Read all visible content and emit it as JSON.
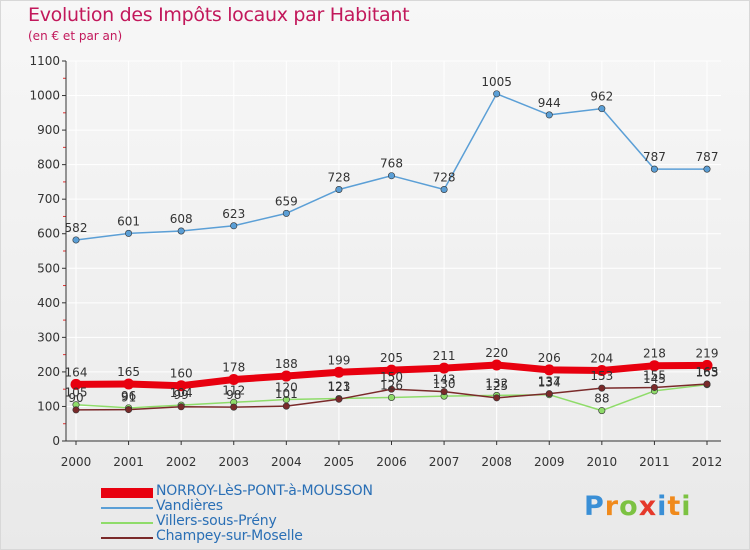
{
  "title": "Evolution des Impôts locaux par Habitant",
  "subtitle": "(en € et par an)",
  "logo": {
    "letters": [
      "P",
      "r",
      "o",
      "x",
      "i",
      "t",
      "i"
    ],
    "colors": [
      "#3a8fd6",
      "#f08a1c",
      "#7cc242",
      "#e5392b",
      "#3a8fd6",
      "#f08a1c",
      "#7cc242"
    ]
  },
  "colors": {
    "axis": "#333333",
    "grid": "#ffffff",
    "tick_marks": "#e03030"
  },
  "chart_data": {
    "type": "line",
    "title": "Evolution des Impôts locaux par Habitant",
    "subtitle": "(en € et par an)",
    "xlabel": "",
    "ylabel": "",
    "x": [
      "2000",
      "2001",
      "2002",
      "2003",
      "2004",
      "2005",
      "2006",
      "2007",
      "2008",
      "2009",
      "2010",
      "2011",
      "2012"
    ],
    "ylim": [
      0,
      1100
    ],
    "yticks": [
      0,
      100,
      200,
      300,
      400,
      500,
      600,
      700,
      800,
      900,
      1000,
      1100
    ],
    "grid": true,
    "legend_position": "bottom-left",
    "series": [
      {
        "name": "NORROY-LèS-PONT-à-MOUSSON",
        "color": "#e8000f",
        "width": 7,
        "values": [
          164,
          165,
          160,
          178,
          188,
          199,
          205,
          211,
          220,
          206,
          204,
          218,
          219
        ],
        "labels": [
          "164",
          "165",
          "160",
          "178",
          "188",
          "199",
          "205",
          "211",
          "220",
          "206",
          "204",
          "218",
          "219"
        ]
      },
      {
        "name": "Vandières",
        "color": "#5b9fd6",
        "width": 1.5,
        "values": [
          582,
          601,
          608,
          623,
          659,
          728,
          768,
          728,
          1005,
          944,
          962,
          787,
          787
        ],
        "labels": [
          "582",
          "601",
          "608",
          "623",
          "659",
          "728",
          "768",
          "728",
          "1005",
          "944",
          "962",
          "787",
          "787"
        ]
      },
      {
        "name": "Villers-sous-Prény",
        "color": "#8fdc6a",
        "width": 1.5,
        "values": [
          105,
          96,
          104,
          112,
          120,
          123,
          126,
          130,
          132,
          134,
          88,
          145,
          163
        ],
        "labels": [
          "105",
          "96",
          "104",
          "112",
          "120",
          "123",
          "126",
          "130",
          "132",
          "134",
          "88",
          "145",
          "163"
        ]
      },
      {
        "name": "Champey-sur-Moselle",
        "color": "#7a2a2a",
        "width": 1.5,
        "values": [
          90,
          91,
          99,
          98,
          101,
          121,
          150,
          143,
          125,
          137,
          153,
          155,
          165
        ],
        "labels": [
          "90",
          "91",
          "99",
          "98",
          "101",
          "121",
          "150",
          "143",
          "125",
          "137",
          "153",
          "155",
          "165"
        ]
      }
    ]
  }
}
